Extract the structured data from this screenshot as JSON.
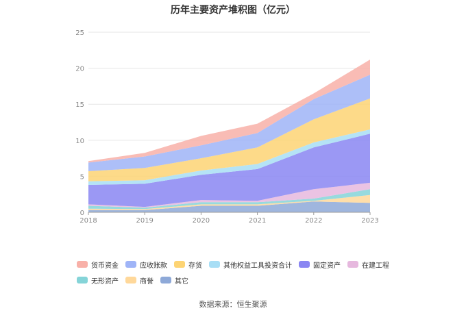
{
  "chart_data": {
    "type": "area",
    "title": "历年主要资产堆积图（亿元）",
    "categories": [
      "2018",
      "2019",
      "2020",
      "2021",
      "2022",
      "2023"
    ],
    "ylim": [
      0,
      25
    ],
    "yticks": [
      0,
      5,
      10,
      15,
      20,
      25
    ],
    "grid": true,
    "legend_position": "bottom",
    "source": "数据来源：恒生聚源",
    "series": [
      {
        "name": "其它",
        "color": "#8ea9d8",
        "values": [
          0.3,
          0.3,
          0.9,
          0.9,
          1.5,
          1.3
        ]
      },
      {
        "name": "商誉",
        "color": "#ffd89a",
        "values": [
          0.2,
          0.15,
          0.2,
          0.2,
          0.1,
          1.1
        ]
      },
      {
        "name": "无形资产",
        "color": "#85d4d8",
        "values": [
          0.4,
          0.2,
          0.3,
          0.3,
          0.3,
          0.8
        ]
      },
      {
        "name": "在建工程",
        "color": "#e6b8de",
        "values": [
          0.2,
          0.1,
          0.3,
          0.2,
          1.3,
          0.9
        ]
      },
      {
        "name": "固定资产",
        "color": "#8a86f2",
        "values": [
          2.7,
          3.2,
          3.5,
          4.4,
          5.8,
          6.8
        ]
      },
      {
        "name": "其他权益工具投资合计",
        "color": "#a8def5",
        "values": [
          0.5,
          0.5,
          0.6,
          0.7,
          0.7,
          0.6
        ]
      },
      {
        "name": "存货",
        "color": "#fdd474",
        "values": [
          1.4,
          1.7,
          1.7,
          2.3,
          3.2,
          4.3
        ]
      },
      {
        "name": "应收账款",
        "color": "#9fb4f7",
        "values": [
          1.2,
          1.6,
          1.8,
          2.0,
          2.8,
          3.3
        ]
      },
      {
        "name": "货币资金",
        "color": "#f8b0a8",
        "values": [
          0.2,
          0.5,
          1.3,
          1.3,
          0.8,
          2.1
        ]
      }
    ],
    "legend_order": [
      "货币资金",
      "应收账款",
      "存货",
      "其他权益工具投资合计",
      "固定资产",
      "在建工程",
      "无形资产",
      "商誉",
      "其它"
    ]
  }
}
